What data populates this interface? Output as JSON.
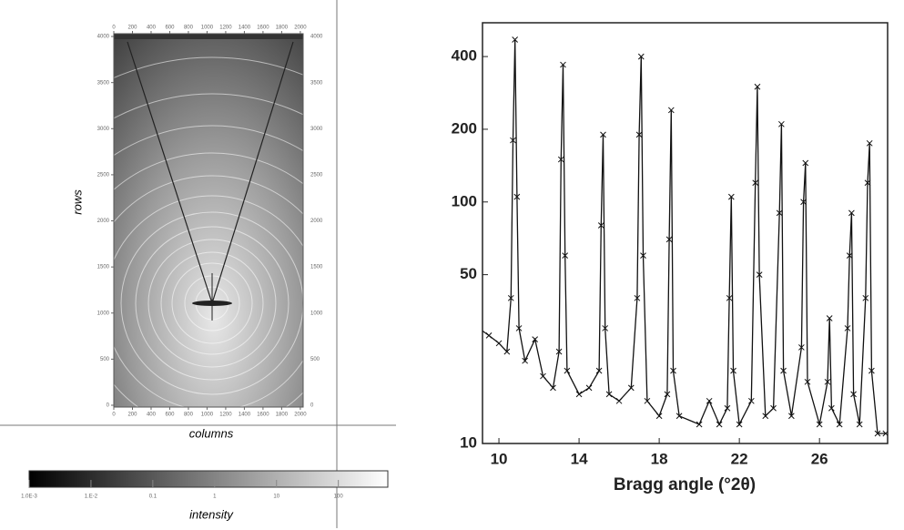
{
  "chart_data": [
    {
      "type": "image",
      "x_label": "columns",
      "y_label": "rows",
      "xlim": [
        0,
        2050
      ],
      "ylim": [
        0,
        4050
      ],
      "xticks": [
        0,
        200,
        400,
        600,
        800,
        1000,
        1200,
        1400,
        1600,
        1800,
        2000
      ],
      "yticks": [
        0,
        500,
        1000,
        1500,
        2000,
        2500,
        3000,
        3500,
        4000
      ],
      "colorbar": {
        "label": "intensity",
        "clim": [
          0.001,
          631
        ],
        "ticks": [
          {
            "value": 0.001,
            "label": "1.0E-3"
          },
          {
            "value": 0.01,
            "label": "1.E-2"
          },
          0.1,
          1,
          10,
          100
        ]
      }
    },
    {
      "type": "line",
      "log_y": true,
      "color": "#111",
      "x_label": "Bragg angle (°2θ)",
      "xlim": [
        9.18,
        29.4
      ],
      "ylim": [
        10,
        552
      ],
      "xticks": [
        10,
        14,
        18,
        22,
        26
      ],
      "yticks": [
        10,
        50,
        100,
        200,
        400
      ],
      "x": [
        9.0,
        9.5,
        10.0,
        10.4,
        10.6,
        10.7,
        10.8,
        10.9,
        11.0,
        11.3,
        11.8,
        12.2,
        12.7,
        13.0,
        13.1,
        13.2,
        13.3,
        13.4,
        14.0,
        14.5,
        15.0,
        15.1,
        15.2,
        15.3,
        15.5,
        16.0,
        16.6,
        16.9,
        17.0,
        17.1,
        17.2,
        17.4,
        18.0,
        18.4,
        18.5,
        18.6,
        18.7,
        19.0,
        20.0,
        20.5,
        21.0,
        21.4,
        21.5,
        21.6,
        21.7,
        22.0,
        22.6,
        22.8,
        22.9,
        23.0,
        23.3,
        23.7,
        24.0,
        24.1,
        24.2,
        24.6,
        25.1,
        25.2,
        25.3,
        25.4,
        26.0,
        26.4,
        26.5,
        26.6,
        27.0,
        27.4,
        27.5,
        27.6,
        27.7,
        28.0,
        28.3,
        28.4,
        28.5,
        28.6,
        28.9,
        29.3
      ],
      "values": [
        30,
        28,
        26,
        24,
        40,
        180,
        470,
        105,
        30,
        22,
        27,
        19,
        17,
        24,
        150,
        370,
        60,
        20,
        16,
        17,
        20,
        80,
        190,
        30,
        16,
        15,
        17,
        40,
        190,
        400,
        60,
        15,
        13,
        16,
        70,
        240,
        20,
        13,
        12,
        15,
        12,
        14,
        40,
        105,
        20,
        12,
        15,
        120,
        300,
        50,
        13,
        14,
        90,
        210,
        20,
        13,
        25,
        100,
        145,
        18,
        12,
        18,
        33,
        14,
        12,
        30,
        60,
        90,
        16,
        12,
        40,
        120,
        175,
        20,
        11,
        11
      ]
    }
  ]
}
